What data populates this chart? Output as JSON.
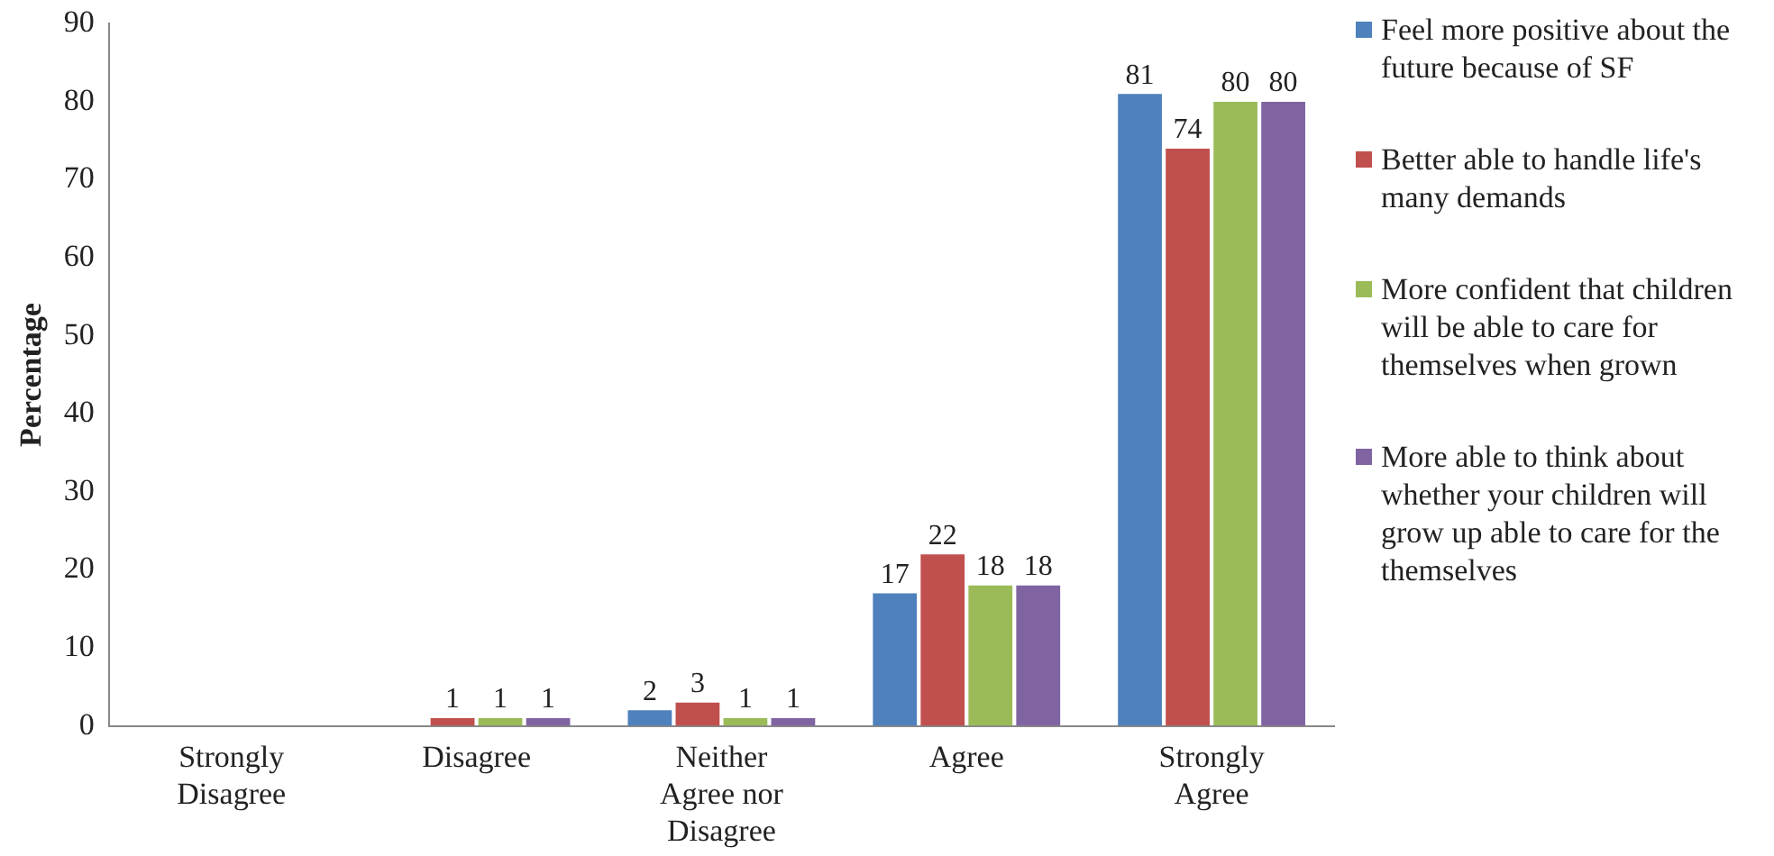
{
  "chart_data": {
    "type": "bar",
    "ylabel": "Percentage",
    "categories": [
      "Strongly Disagree",
      "Disagree",
      "Neither Agree nor Disagree",
      "Agree",
      "Strongly Agree"
    ],
    "series": [
      {
        "name": "Feel more positive about the future because of SF",
        "color": "#4f81bd",
        "values": [
          0,
          0,
          2,
          17,
          81
        ],
        "value_labels": [
          null,
          null,
          "2",
          "17",
          "81"
        ]
      },
      {
        "name": "Better able to handle life's many demands",
        "color": "#c0504d",
        "values": [
          0,
          1,
          3,
          22,
          74
        ],
        "value_labels": [
          null,
          "1",
          "3",
          "22",
          "74"
        ]
      },
      {
        "name": "More confident that children will be able to care for themselves when grown",
        "color": "#9bbb59",
        "values": [
          0,
          1,
          1,
          18,
          80
        ],
        "value_labels": [
          null,
          "1",
          "1",
          "18",
          "80"
        ]
      },
      {
        "name": "More able to think about whether your children will grow up able to care for the themselves",
        "color": "#8064a2",
        "values": [
          0,
          1,
          1,
          18,
          80
        ],
        "value_labels": [
          null,
          "1",
          "1",
          "18",
          "80"
        ]
      }
    ],
    "ylim": [
      0,
      90
    ],
    "yticks": [
      0,
      10,
      20,
      30,
      40,
      50,
      60,
      70,
      80,
      90
    ],
    "grid": false,
    "legend": "right"
  }
}
